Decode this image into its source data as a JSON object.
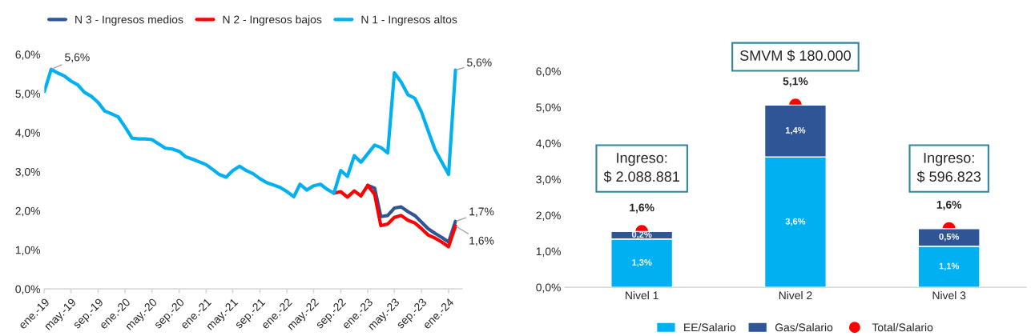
{
  "chart_data": [
    {
      "type": "line",
      "legend": "top",
      "x": [
        "2019-01",
        "2019-02",
        "2019-03",
        "2019-04",
        "2019-05",
        "2019-06",
        "2019-07",
        "2019-08",
        "2019-09",
        "2019-10",
        "2019-11",
        "2019-12",
        "2020-01",
        "2020-02",
        "2020-03",
        "2020-04",
        "2020-05",
        "2020-06",
        "2020-07",
        "2020-08",
        "2020-09",
        "2020-10",
        "2020-11",
        "2020-12",
        "2021-01",
        "2021-02",
        "2021-03",
        "2021-04",
        "2021-05",
        "2021-06",
        "2021-07",
        "2021-08",
        "2021-09",
        "2021-10",
        "2021-11",
        "2021-12",
        "2022-01",
        "2022-02",
        "2022-03",
        "2022-04",
        "2022-05",
        "2022-06",
        "2022-07",
        "2022-08",
        "2022-09",
        "2022-10",
        "2022-11",
        "2022-12",
        "2023-01",
        "2023-02",
        "2023-03",
        "2023-04",
        "2023-05",
        "2023-06",
        "2023-07",
        "2023-08",
        "2023-09",
        "2023-10",
        "2023-11",
        "2023-12",
        "2024-01",
        "2024-02"
      ],
      "xlim": [
        "2019-01",
        "2024-03"
      ],
      "xticks": [
        {
          "value": "2019-01",
          "label": "ene.-19"
        },
        {
          "value": "2019-05",
          "label": "may.-19"
        },
        {
          "value": "2019-09",
          "label": "sep.-19"
        },
        {
          "value": "2020-01",
          "label": "ene.-20"
        },
        {
          "value": "2020-05",
          "label": "may.-20"
        },
        {
          "value": "2020-09",
          "label": "sep.-20"
        },
        {
          "value": "2021-01",
          "label": "ene.-21"
        },
        {
          "value": "2021-05",
          "label": "may.-21"
        },
        {
          "value": "2021-09",
          "label": "sep.-21"
        },
        {
          "value": "2022-01",
          "label": "ene.-22"
        },
        {
          "value": "2022-05",
          "label": "may.-22"
        },
        {
          "value": "2022-09",
          "label": "sep.-22"
        },
        {
          "value": "2023-01",
          "label": "ene.-23"
        },
        {
          "value": "2023-05",
          "label": "may.-23"
        },
        {
          "value": "2023-09",
          "label": "sep.-23"
        },
        {
          "value": "2024-01",
          "label": "ene.-24"
        }
      ],
      "ylim": [
        0,
        6
      ],
      "yticks": [
        {
          "value": 0,
          "label": "0,0%"
        },
        {
          "value": 1,
          "label": "1,0%"
        },
        {
          "value": 2,
          "label": "2,0%"
        },
        {
          "value": 3,
          "label": "3,0%"
        },
        {
          "value": 4,
          "label": "4,0%"
        },
        {
          "value": 5,
          "label": "5,0%"
        },
        {
          "value": 6,
          "label": "6,0%"
        }
      ],
      "series": [
        {
          "name": "N 3 - Ingresos medios",
          "color": "#2f5597",
          "values": [
            null,
            null,
            null,
            null,
            null,
            null,
            null,
            null,
            null,
            null,
            null,
            null,
            null,
            null,
            null,
            null,
            null,
            null,
            null,
            null,
            null,
            null,
            null,
            null,
            null,
            null,
            null,
            null,
            null,
            null,
            null,
            null,
            null,
            null,
            null,
            null,
            null,
            null,
            null,
            null,
            null,
            null,
            null,
            null,
            null,
            null,
            null,
            null,
            2.65,
            2.58,
            1.85,
            1.88,
            2.07,
            2.1,
            1.98,
            1.88,
            1.71,
            1.54,
            1.42,
            1.32,
            1.2,
            1.73
          ]
        },
        {
          "name": "N 2 - Ingresos bajos",
          "color": "#ff0000",
          "values": [
            null,
            null,
            null,
            null,
            null,
            null,
            null,
            null,
            null,
            null,
            null,
            null,
            null,
            null,
            null,
            null,
            null,
            null,
            null,
            null,
            null,
            null,
            null,
            null,
            null,
            null,
            null,
            null,
            null,
            null,
            null,
            null,
            null,
            null,
            null,
            null,
            null,
            null,
            null,
            null,
            null,
            null,
            null,
            2.45,
            2.49,
            2.35,
            2.51,
            2.38,
            2.65,
            2.42,
            1.62,
            1.66,
            1.83,
            1.88,
            1.76,
            1.69,
            1.54,
            1.38,
            1.3,
            1.2,
            1.08,
            1.61
          ]
        },
        {
          "name": "N 1 - Ingresos altos",
          "color": "#00b0f0",
          "values": [
            5.05,
            5.62,
            5.53,
            5.45,
            5.32,
            5.22,
            5.03,
            4.93,
            4.77,
            4.55,
            4.48,
            4.4,
            4.14,
            3.86,
            3.84,
            3.84,
            3.82,
            3.71,
            3.6,
            3.58,
            3.52,
            3.38,
            3.32,
            3.25,
            3.18,
            3.05,
            2.93,
            2.86,
            3.03,
            3.14,
            3.03,
            2.95,
            2.82,
            2.72,
            2.66,
            2.6,
            2.49,
            2.36,
            2.68,
            2.53,
            2.64,
            2.68,
            2.55,
            2.45,
            3.03,
            2.88,
            3.41,
            3.24,
            3.46,
            3.68,
            3.62,
            3.48,
            5.53,
            5.29,
            4.97,
            4.88,
            4.52,
            4.04,
            3.56,
            3.25,
            2.93,
            5.6
          ]
        }
      ],
      "annotations": [
        {
          "text": "5,6%",
          "x": "2019-02",
          "y": 5.62
        },
        {
          "text": "5,6%",
          "x": "2024-02",
          "y": 5.6
        },
        {
          "text": "1,7%",
          "x": "2024-02",
          "y": 1.73
        },
        {
          "text": "1,6%",
          "x": "2024-02",
          "y": 1.61
        }
      ]
    },
    {
      "type": "bar",
      "stacked": true,
      "legend": "bottom",
      "categories": [
        "Nivel 1",
        "Nivel 2",
        "Nivel 3"
      ],
      "ylim": [
        0,
        6
      ],
      "yticks": [
        {
          "value": 0,
          "label": "0,0%"
        },
        {
          "value": 1,
          "label": "1,0%"
        },
        {
          "value": 2,
          "label": "2,0%"
        },
        {
          "value": 3,
          "label": "3,0%"
        },
        {
          "value": 4,
          "label": "4,0%"
        },
        {
          "value": 5,
          "label": "5,0%"
        },
        {
          "value": 6,
          "label": "6,0%"
        }
      ],
      "series": [
        {
          "name": "EE/Salario",
          "color": "#00b0f0",
          "values": [
            1.34,
            3.62,
            1.14
          ],
          "value_labels": [
            "1,3%",
            "3,6%",
            "1,1%"
          ]
        },
        {
          "name": "Gas/Salario",
          "color": "#2f5597",
          "values": [
            0.21,
            1.44,
            0.49
          ],
          "value_labels": [
            "0,2%",
            "1,4%",
            "0,5%"
          ]
        },
        {
          "name": "Total/Salario",
          "type": "scatter",
          "color": "#ff0000",
          "x": [
            "Nivel 1",
            "Nivel 2",
            "Nivel 3"
          ],
          "values": [
            1.55,
            5.06,
            1.63
          ],
          "value_labels": [
            "1,6%",
            "5,1%",
            "1,6%"
          ]
        }
      ],
      "annotations": [
        "SMVM $ 180.000",
        "Ingreso:\n$ 2.088.881",
        "Ingreso:\n$ 596.823"
      ]
    }
  ]
}
